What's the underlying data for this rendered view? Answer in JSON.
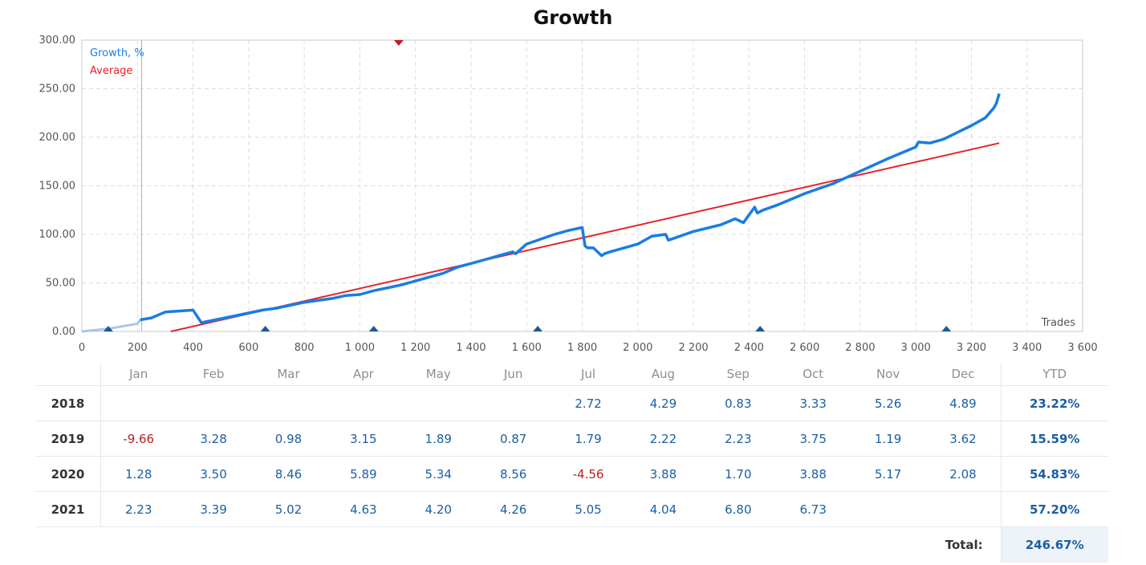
{
  "chart_data": {
    "type": "line",
    "title": "Growth",
    "xlabel": "Trades",
    "ylabel": "",
    "xlim": [
      0,
      3600
    ],
    "ylim": [
      0,
      300
    ],
    "x_ticks": [
      "0",
      "200",
      "400",
      "600",
      "800",
      "1 000",
      "1 200",
      "1 400",
      "1 600",
      "1 800",
      "2 000",
      "2 200",
      "2 400",
      "2 600",
      "2 800",
      "3 000",
      "3 200",
      "3 400",
      "3 600"
    ],
    "y_ticks": [
      "0.00",
      "50.00",
      "100.00",
      "150.00",
      "200.00",
      "250.00",
      "300.00"
    ],
    "grid": true,
    "legend_position": "top-left",
    "series": [
      {
        "name": "Growth, %",
        "color": "#1a7ce3",
        "x": [
          0,
          100,
          200,
          210,
          250,
          300,
          400,
          430,
          550,
          650,
          700,
          800,
          900,
          950,
          1000,
          1050,
          1100,
          1150,
          1200,
          1300,
          1350,
          1400,
          1450,
          1500,
          1550,
          1560,
          1600,
          1700,
          1750,
          1800,
          1810,
          1820,
          1840,
          1870,
          1880,
          1900,
          2000,
          2050,
          2100,
          2110,
          2200,
          2300,
          2350,
          2380,
          2400,
          2420,
          2430,
          2450,
          2500,
          2600,
          2700,
          2800,
          2900,
          3000,
          3010,
          3050,
          3100,
          3150,
          3200,
          3250,
          3280,
          3290,
          3300
        ],
        "y": [
          0,
          3,
          8,
          12,
          14,
          20,
          22,
          9,
          16,
          22,
          24,
          30,
          34,
          37,
          38,
          42,
          45,
          48,
          52,
          60,
          66,
          70,
          74,
          78,
          82,
          80,
          90,
          100,
          104,
          107,
          88,
          86,
          86,
          78,
          80,
          82,
          90,
          98,
          100,
          94,
          103,
          110,
          116,
          112,
          120,
          128,
          122,
          125,
          130,
          142,
          152,
          165,
          178,
          190,
          195,
          194,
          198,
          205,
          212,
          220,
          230,
          235,
          245
        ]
      },
      {
        "name": "Average",
        "color": "#e8202a",
        "x": [
          320,
          3300
        ],
        "y": [
          0,
          194
        ]
      }
    ],
    "markers": {
      "bottom_trades": [
        95,
        660,
        1050,
        1640,
        2440,
        3110
      ],
      "top_trades": [
        1140
      ],
      "bottom_color": "#1a5a96",
      "top_color": "#c8161f"
    },
    "vertical_line_trade": 215
  },
  "table": {
    "months": [
      "Jan",
      "Feb",
      "Mar",
      "Apr",
      "May",
      "Jun",
      "Jul",
      "Aug",
      "Sep",
      "Oct",
      "Nov",
      "Dec"
    ],
    "ytd_label": "YTD",
    "rows": [
      {
        "year": "2018",
        "values": [
          "",
          "",
          "",
          "",
          "",
          "",
          "2.72",
          "4.29",
          "0.83",
          "3.33",
          "5.26",
          "4.89"
        ],
        "ytd": "23.22%"
      },
      {
        "year": "2019",
        "values": [
          "-9.66",
          "3.28",
          "0.98",
          "3.15",
          "1.89",
          "0.87",
          "1.79",
          "2.22",
          "2.23",
          "3.75",
          "1.19",
          "3.62"
        ],
        "ytd": "15.59%"
      },
      {
        "year": "2020",
        "values": [
          "1.28",
          "3.50",
          "8.46",
          "5.89",
          "5.34",
          "8.56",
          "-4.56",
          "3.88",
          "1.70",
          "3.88",
          "5.17",
          "2.08"
        ],
        "ytd": "54.83%"
      },
      {
        "year": "2021",
        "values": [
          "2.23",
          "3.39",
          "5.02",
          "4.63",
          "4.20",
          "4.26",
          "5.05",
          "4.04",
          "6.80",
          "6.73",
          "",
          ""
        ],
        "ytd": "57.20%"
      }
    ],
    "total_label": "Total:",
    "total_value": "246.67%"
  },
  "colors": {
    "positive": "#1b5fa1",
    "negative": "#b22222"
  }
}
